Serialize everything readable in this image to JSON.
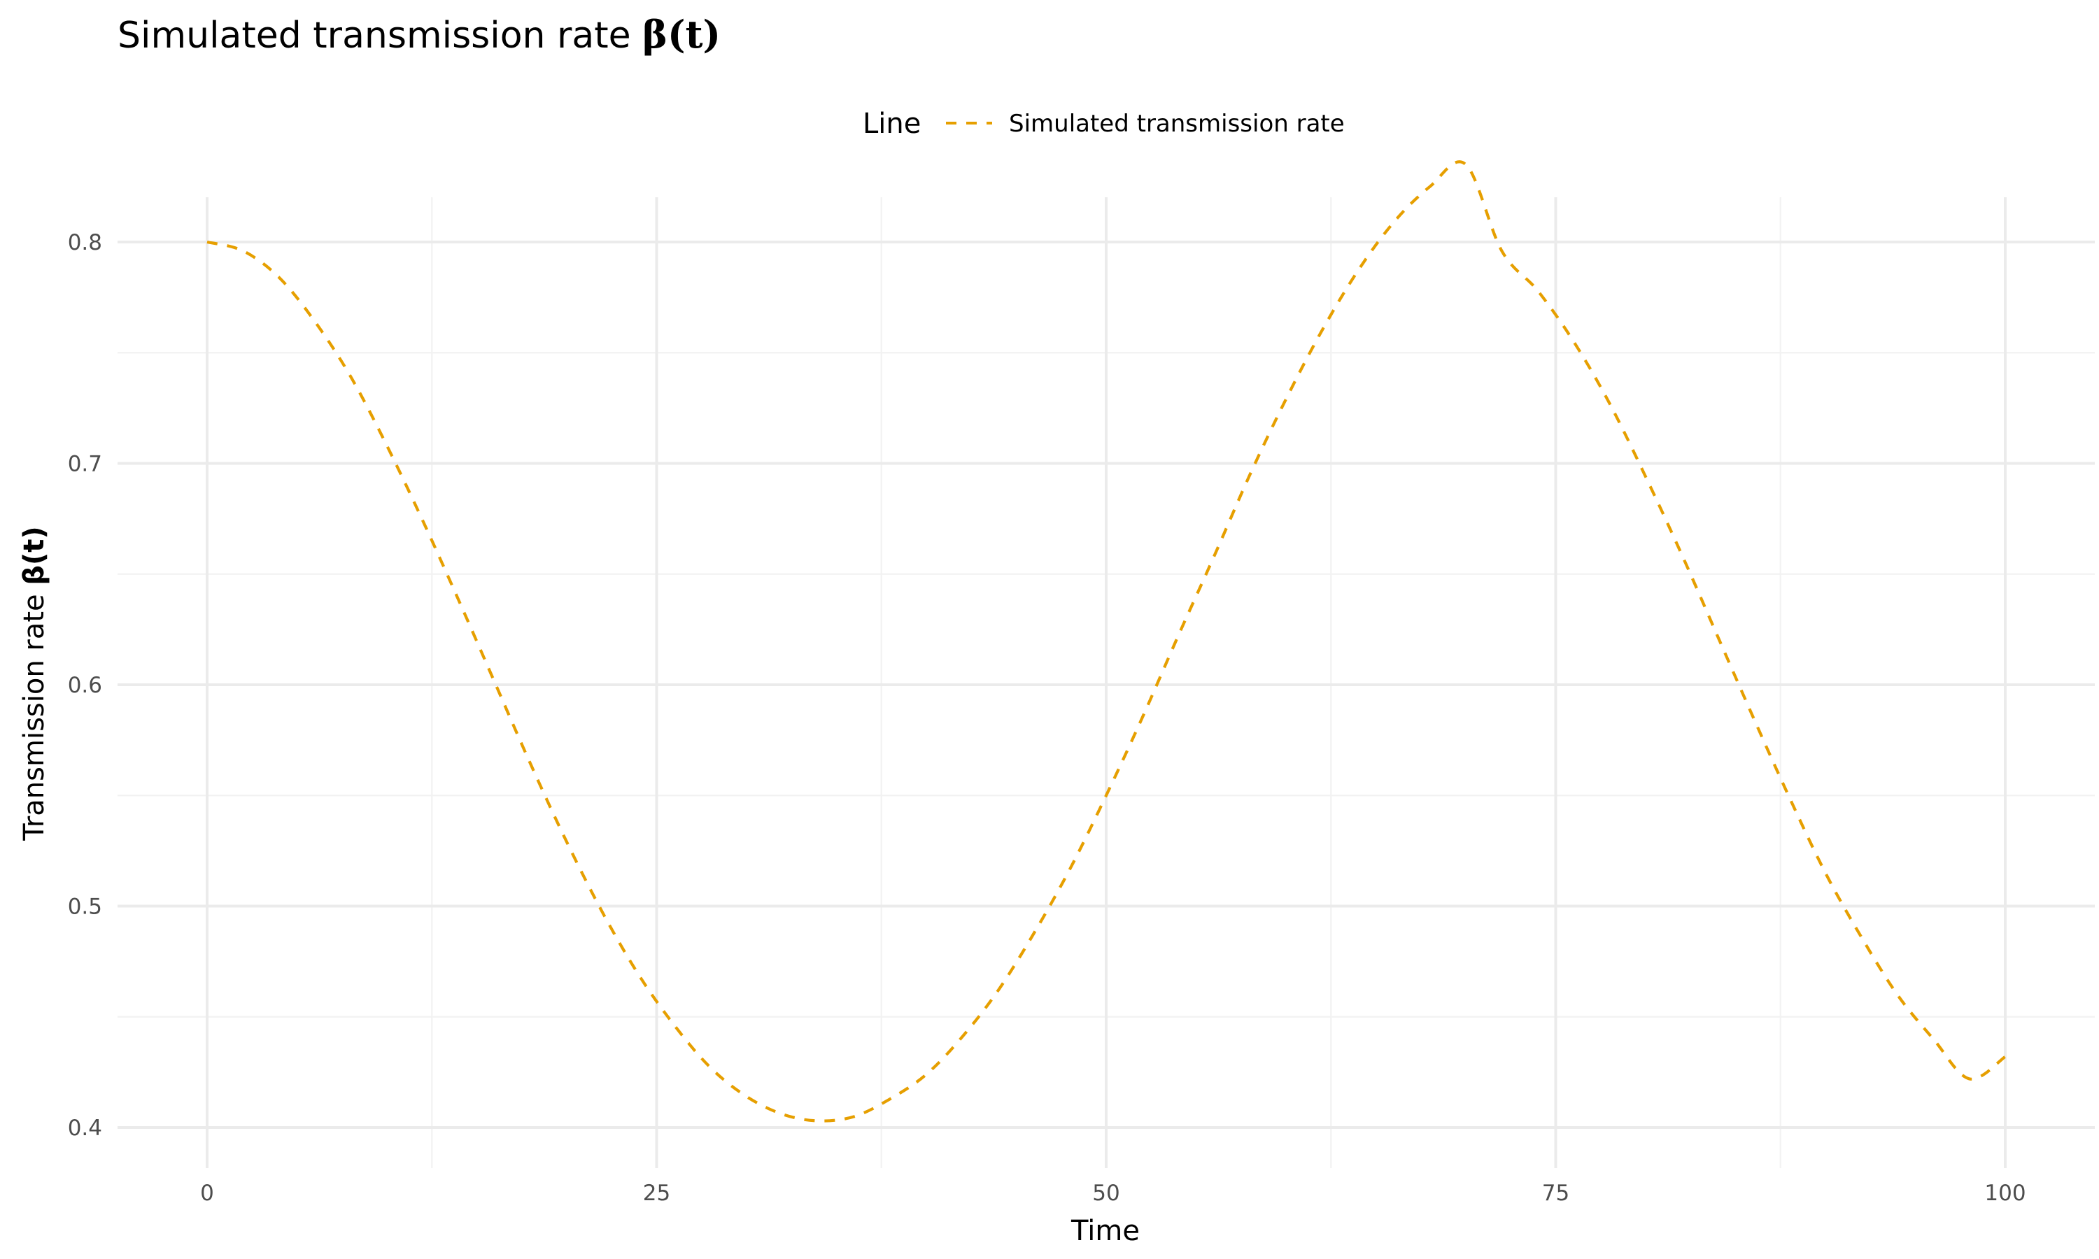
{
  "colors": {
    "background": "#ffffff",
    "line": "#E69F00",
    "grid_major": "#ebebeb",
    "grid_minor": "#f2f2f2",
    "tick_text": "#4d4d4d",
    "text": "#000000"
  },
  "chart_data": {
    "type": "line",
    "title": "Simulated transmission rate ",
    "title_math": "β(t)",
    "xlabel": "Time",
    "ylabel": "Transmission rate ",
    "ylabel_math": "β(t)",
    "xlim": [
      0,
      100
    ],
    "ylim": [
      0.4,
      0.8
    ],
    "x_ticks": [
      0,
      25,
      50,
      75,
      100
    ],
    "x_tick_labels": [
      "0",
      "25",
      "50",
      "75",
      "100"
    ],
    "y_ticks": [
      0.4,
      0.5,
      0.6,
      0.7,
      0.8
    ],
    "y_tick_labels": [
      "0.4",
      "0.5",
      "0.6",
      "0.7",
      "0.8"
    ],
    "grid": true,
    "legend": {
      "position": "top",
      "title": "Line",
      "entries": [
        {
          "label": "Simulated transmission rate",
          "color": "#E69F00",
          "linetype": "dashed"
        }
      ]
    },
    "series": [
      {
        "name": "Simulated transmission rate",
        "color": "#E69F00",
        "linetype": "dashed",
        "x": [
          0,
          2,
          4,
          6,
          8,
          10,
          12,
          14,
          16,
          18,
          20,
          22,
          24,
          26,
          28,
          30,
          32,
          34,
          36,
          38,
          40,
          42,
          44,
          46,
          48,
          50,
          52,
          54,
          56,
          58,
          60,
          62,
          64,
          66,
          68,
          70,
          72,
          74,
          76,
          78,
          80,
          82,
          84,
          86,
          88,
          90,
          92,
          94,
          96,
          98,
          100
        ],
        "y": [
          0.8,
          0.796,
          0.784,
          0.764,
          0.739,
          0.708,
          0.674,
          0.638,
          0.601,
          0.564,
          0.529,
          0.497,
          0.469,
          0.446,
          0.427,
          0.414,
          0.406,
          0.403,
          0.405,
          0.413,
          0.424,
          0.441,
          0.462,
          0.488,
          0.517,
          0.55,
          0.585,
          0.622,
          0.658,
          0.695,
          0.729,
          0.76,
          0.787,
          0.809,
          0.825,
          0.835,
          0.796,
          0.778,
          0.755,
          0.727,
          0.694,
          0.659,
          0.622,
          0.585,
          0.549,
          0.515,
          0.486,
          0.46,
          0.44,
          0.422,
          0.432
        ]
      }
    ]
  }
}
